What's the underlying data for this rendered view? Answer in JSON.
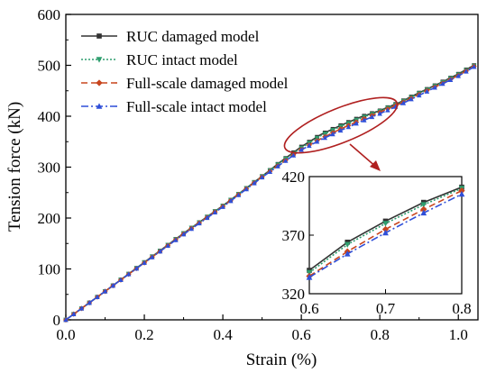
{
  "chart_data": {
    "type": "line",
    "xlabel": "Strain (%)",
    "ylabel": "Tension force (kN)",
    "xlim": [
      0.0,
      1.05
    ],
    "ylim": [
      0,
      600
    ],
    "xticks": [
      "0.0",
      "0.2",
      "0.4",
      "0.6",
      "0.8",
      "1.0"
    ],
    "yticks": [
      "0",
      "100",
      "200",
      "300",
      "400",
      "500",
      "600"
    ],
    "legend_position": "top-left",
    "series": [
      {
        "name": "RUC damaged model",
        "color": "#333333",
        "marker": "square",
        "line": "solid",
        "x": [
          0.0,
          0.1,
          0.2,
          0.3,
          0.4,
          0.5,
          0.55,
          0.6,
          0.65,
          0.7,
          0.75,
          0.8,
          0.85,
          0.9,
          0.95,
          1.0,
          1.04
        ],
        "y": [
          0,
          56,
          113,
          170,
          224,
          282,
          312,
          340,
          364,
          382,
          398,
          411,
          427,
          446,
          464,
          483,
          500
        ]
      },
      {
        "name": "RUC intact model",
        "color": "#2e9e6e",
        "marker": "triangle-down",
        "line": "dotted",
        "x": [
          0.0,
          0.1,
          0.2,
          0.3,
          0.4,
          0.5,
          0.55,
          0.6,
          0.65,
          0.7,
          0.75,
          0.8,
          0.85,
          0.9,
          0.95,
          1.0,
          1.04
        ],
        "y": [
          0,
          56,
          113,
          170,
          224,
          282,
          311,
          338,
          362,
          380,
          396,
          410,
          426,
          445,
          463,
          482,
          499
        ]
      },
      {
        "name": "Full-scale damaged model",
        "color": "#c8461e",
        "marker": "diamond",
        "line": "dashed",
        "x": [
          0.0,
          0.1,
          0.2,
          0.3,
          0.4,
          0.5,
          0.55,
          0.6,
          0.65,
          0.7,
          0.75,
          0.8,
          0.85,
          0.9,
          0.95,
          1.0,
          1.04
        ],
        "y": [
          0,
          56,
          112,
          169,
          223,
          281,
          308,
          335,
          356,
          375,
          392,
          408,
          424,
          443,
          461,
          480,
          498
        ]
      },
      {
        "name": "Full-scale intact model",
        "color": "#2f4fd8",
        "marker": "triangle-up",
        "line": "dashdot",
        "x": [
          0.0,
          0.1,
          0.2,
          0.3,
          0.4,
          0.5,
          0.55,
          0.6,
          0.65,
          0.7,
          0.75,
          0.8,
          0.85,
          0.9,
          0.95,
          1.0,
          1.04
        ],
        "y": [
          0,
          56,
          112,
          168,
          222,
          280,
          307,
          334,
          354,
          372,
          389,
          405,
          422,
          441,
          460,
          479,
          497
        ]
      }
    ],
    "inset": {
      "xlim": [
        0.6,
        0.8
      ],
      "ylim": [
        320,
        420
      ],
      "xticks": [
        "0.6",
        "0.7",
        "0.8"
      ],
      "yticks": [
        "320",
        "370",
        "420"
      ],
      "highlight_color": "#b02020"
    }
  }
}
